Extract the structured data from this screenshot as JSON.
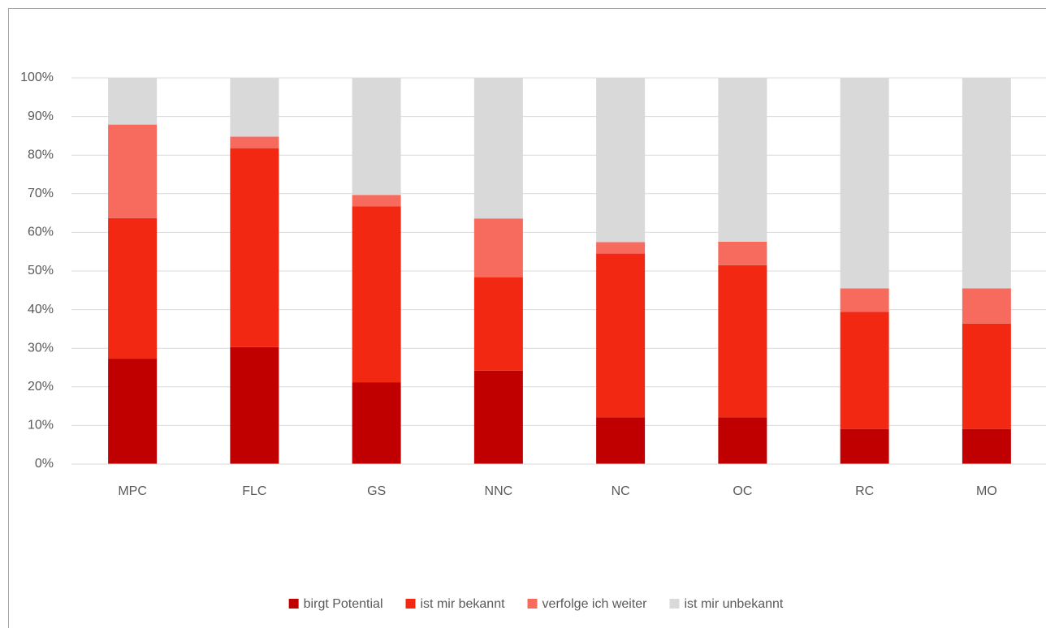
{
  "chart_data": {
    "type": "stacked_bar",
    "categories": [
      "MPC",
      "FLC",
      "GS",
      "NNC",
      "NC",
      "OC",
      "RC",
      "MO"
    ],
    "series": [
      {
        "name": "birgt Potential",
        "color": "#c00000",
        "values": [
          27.3,
          30.3,
          21.2,
          24.2,
          12.1,
          12.1,
          9.1,
          9.1
        ]
      },
      {
        "name": "ist mir bekannt",
        "color": "#f22812",
        "values": [
          36.4,
          51.5,
          45.5,
          24.2,
          42.4,
          39.4,
          30.3,
          27.3
        ]
      },
      {
        "name": "verfolge ich weiter",
        "color": "#f66b5e",
        "values": [
          24.2,
          3.0,
          3.0,
          15.2,
          3.0,
          6.1,
          6.1,
          9.1
        ]
      },
      {
        "name": "ist mir unbekannt",
        "color": "#d9d9d9",
        "values": [
          12.1,
          15.2,
          30.3,
          36.4,
          42.4,
          42.4,
          54.5,
          54.5
        ]
      }
    ],
    "ylim": [
      0,
      100
    ],
    "yticks": [
      {
        "value": 0,
        "label": "0%"
      },
      {
        "value": 10,
        "label": "10%"
      },
      {
        "value": 20,
        "label": "20%"
      },
      {
        "value": 30,
        "label": "30%"
      },
      {
        "value": 40,
        "label": "40%"
      },
      {
        "value": 50,
        "label": "50%"
      },
      {
        "value": 60,
        "label": "60%"
      },
      {
        "value": 70,
        "label": "70%"
      },
      {
        "value": 80,
        "label": "80%"
      },
      {
        "value": 90,
        "label": "90%"
      },
      {
        "value": 100,
        "label": "100%"
      }
    ],
    "grid": true,
    "legend": "bottom"
  }
}
